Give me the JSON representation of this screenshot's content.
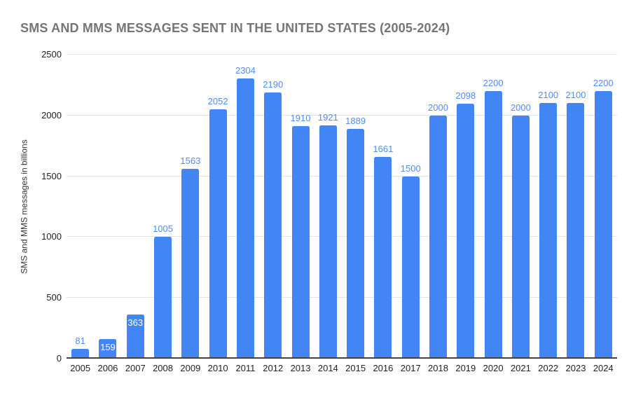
{
  "title": "SMS AND MMS MESSAGES SENT IN THE UNITED STATES (2005-2024)",
  "chart_data": {
    "type": "bar",
    "title": "SMS AND MMS MESSAGES SENT IN THE UNITED STATES (2005-2024)",
    "xlabel": "",
    "ylabel": "SMS and MMS messages in billions",
    "categories": [
      "2005",
      "2006",
      "2007",
      "2008",
      "2009",
      "2010",
      "2011",
      "2012",
      "2013",
      "2014",
      "2015",
      "2016",
      "2017",
      "2018",
      "2019",
      "2020",
      "2021",
      "2022",
      "2023",
      "2024"
    ],
    "values": [
      81,
      159,
      363,
      1005,
      1563,
      2052,
      2304,
      2190,
      1910,
      1921,
      1889,
      1661,
      1500,
      2000,
      2098,
      2200,
      2000,
      2100,
      2100,
      2200
    ],
    "data_labels_visible": true,
    "inside_label_indices": [
      1,
      2
    ],
    "ylim": [
      0,
      2500
    ],
    "yticks": [
      0,
      500,
      1000,
      1500,
      2000,
      2500
    ],
    "grid": true,
    "legend": "none",
    "colors": {
      "bar": "#4285f4",
      "data_label": "#548cf4",
      "data_label_inside": "#ffffff",
      "title": "#757575",
      "gridline": "#e3e3e3",
      "baseline": "#424242",
      "axis_text": "#222222"
    }
  }
}
